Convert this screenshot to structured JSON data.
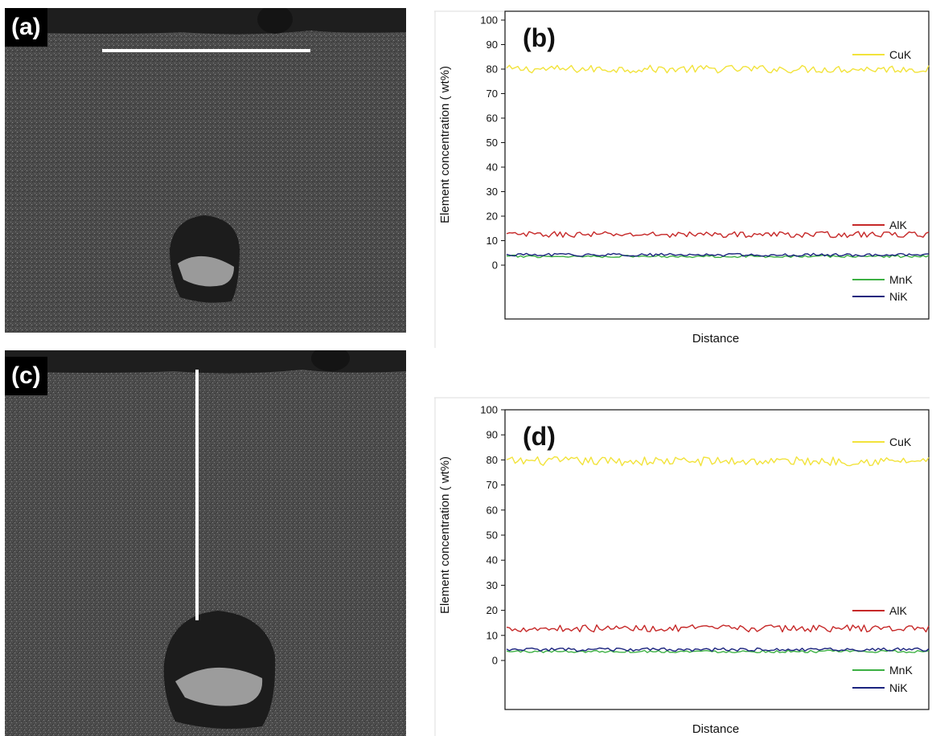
{
  "panels": {
    "a": {
      "label": "(a)",
      "scan_line": "horizontal"
    },
    "b": {
      "label": "(b)"
    },
    "c": {
      "label": "(c)",
      "scan_line": "vertical"
    },
    "d": {
      "label": "(d)"
    }
  },
  "colors": {
    "CuK": "#f2e33b",
    "AlK": "#c62828",
    "MnK": "#3cb043",
    "NiK": "#1a237e",
    "sem_bg": "#4a4a4a",
    "scan_line": "#ffffff"
  },
  "chart_data": [
    {
      "type": "line",
      "panel": "(b)",
      "title": "",
      "xlabel": "Distance",
      "ylabel": "Element concentration ( wt%)",
      "ylim": [
        0,
        100
      ],
      "y_ticks": [
        "0",
        "10",
        "20",
        "30",
        "40",
        "50",
        "60",
        "70",
        "80",
        "90",
        "100"
      ],
      "legend_placement": "right, beside each line",
      "grid": false,
      "series": [
        {
          "name": "CuK",
          "mean": 80,
          "noise": 1.6,
          "x_range": [
            0,
            1
          ]
        },
        {
          "name": "AlK",
          "mean": 12.5,
          "noise": 1.2,
          "x_range": [
            0,
            1
          ]
        },
        {
          "name": "MnK",
          "mean": 3.6,
          "noise": 0.5,
          "x_range": [
            0,
            1
          ]
        },
        {
          "name": "NiK",
          "mean": 4.2,
          "noise": 0.6,
          "x_range": [
            0,
            1
          ]
        }
      ]
    },
    {
      "type": "line",
      "panel": "(d)",
      "title": "",
      "xlabel": "Distance",
      "ylabel": "Element concentration ( wt%)",
      "ylim": [
        0,
        100
      ],
      "y_ticks": [
        "0",
        "10",
        "20",
        "30",
        "40",
        "50",
        "60",
        "70",
        "80",
        "90",
        "100"
      ],
      "legend_placement": "right, beside each line",
      "grid": false,
      "series": [
        {
          "name": "CuK",
          "mean": 79.5,
          "noise": 1.8,
          "x_range": [
            0,
            1
          ]
        },
        {
          "name": "AlK",
          "mean": 12.8,
          "noise": 1.4,
          "x_range": [
            0,
            1
          ]
        },
        {
          "name": "MnK",
          "mean": 3.6,
          "noise": 0.5,
          "x_range": [
            0,
            1
          ]
        },
        {
          "name": "NiK",
          "mean": 4.3,
          "noise": 0.7,
          "x_range": [
            0,
            1
          ]
        }
      ]
    }
  ]
}
